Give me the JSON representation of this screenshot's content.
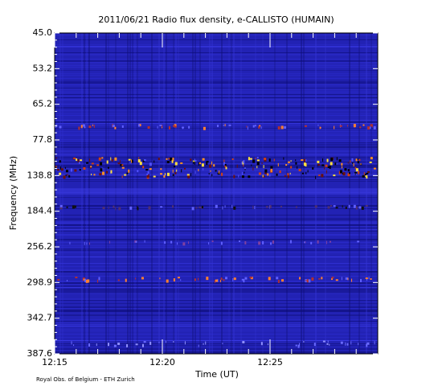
{
  "chart_data": {
    "type": "spectrogram",
    "title": "2011/06/21  Radio flux density, e-CALLISTO (HUMAIN)",
    "xlabel": "Time (UT)",
    "ylabel": "Frequency (MHz)",
    "footer": "Royal Obs. of Belgium - ETH Zurich",
    "xlim": [
      "12:15",
      "12:30"
    ],
    "xticks": [
      "12:15",
      "12:20",
      "12:25"
    ],
    "ylim": [
      45,
      387.6
    ],
    "yticks": [
      {
        "value": 45,
        "label": "45.0"
      },
      53.2,
      65.2,
      77.8,
      138.8,
      184.4,
      256.2,
      298.9,
      342.7,
      387.6
    ]
  }
}
